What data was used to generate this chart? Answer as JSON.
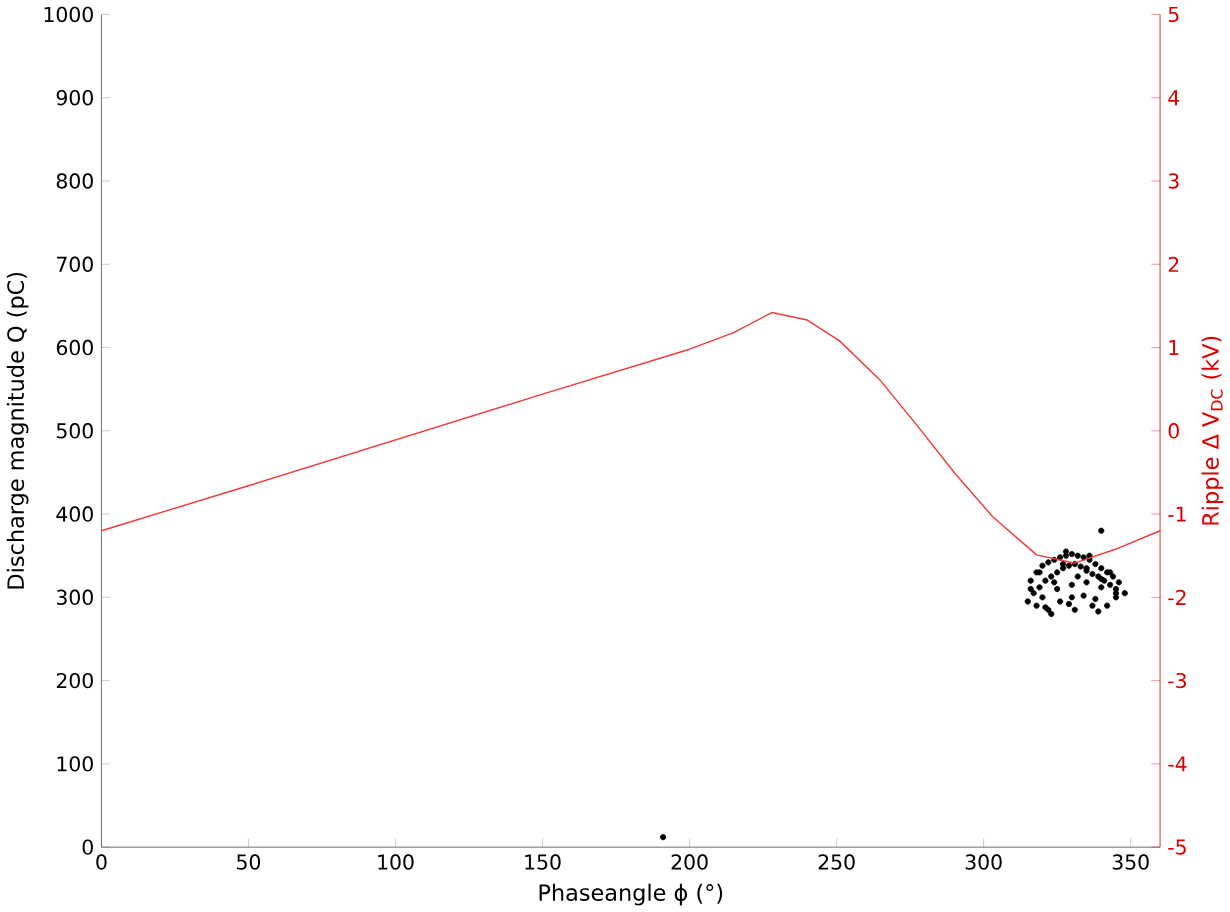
{
  "chart_data": {
    "type": "scatter",
    "xlabel": "Phaseangle ϕ (°)",
    "ylabel": "Discharge magnitude Q (pC)",
    "y2label": "Ripple Δ V$_{DC}$ (kV)",
    "xlim": [
      0,
      360
    ],
    "xticks": [
      0,
      50,
      100,
      150,
      200,
      250,
      300,
      350
    ],
    "ylim": [
      0,
      1000
    ],
    "yticks": [
      0,
      100,
      200,
      300,
      400,
      500,
      600,
      700,
      800,
      900,
      1000
    ],
    "y2lim": [
      -5,
      5
    ],
    "y2ticks": [
      -5,
      -4,
      -3,
      -2,
      -1,
      0,
      1,
      2,
      3,
      4,
      5
    ],
    "series": [
      {
        "color": "#000000",
        "marker": "circle",
        "x": [
          316,
          318,
          320,
          322,
          324,
          326,
          328,
          330,
          332,
          334,
          336,
          338,
          340,
          342,
          344,
          346,
          317,
          319,
          321,
          323,
          325,
          327,
          329,
          331,
          333,
          335,
          337,
          339,
          341,
          343,
          345,
          315,
          320,
          325,
          330,
          335,
          340,
          345,
          318,
          322,
          326,
          330,
          334,
          338,
          342,
          316,
          324,
          332,
          340,
          348,
          319,
          327,
          335,
          343,
          321,
          329,
          337,
          345,
          323,
          331,
          339,
          328,
          336,
          191,
          340
        ],
        "values": [
          320,
          330,
          338,
          342,
          345,
          348,
          350,
          352,
          350,
          348,
          345,
          340,
          335,
          330,
          325,
          318,
          305,
          312,
          320,
          325,
          330,
          335,
          338,
          340,
          337,
          332,
          328,
          325,
          320,
          315,
          310,
          295,
          300,
          310,
          315,
          318,
          312,
          305,
          290,
          285,
          295,
          300,
          302,
          298,
          290,
          310,
          318,
          325,
          322,
          305,
          330,
          340,
          335,
          330,
          288,
          292,
          290,
          300,
          280,
          285,
          283,
          355,
          350,
          12,
          380
        ]
      },
      {
        "type": "line",
        "axis": "y2",
        "color": "#f03a3a",
        "marker": "none",
        "line_style": "solid",
        "x": [
          0,
          50,
          100,
          150,
          200,
          215,
          228,
          240,
          251,
          265,
          277,
          290,
          303,
          318,
          331,
          345,
          360
        ],
        "values": [
          -1.2,
          -0.66,
          -0.11,
          0.44,
          0.98,
          1.18,
          1.42,
          1.33,
          1.08,
          0.6,
          0.08,
          -0.5,
          -1.03,
          -1.49,
          -1.59,
          -1.42,
          -1.2
        ]
      }
    ]
  }
}
